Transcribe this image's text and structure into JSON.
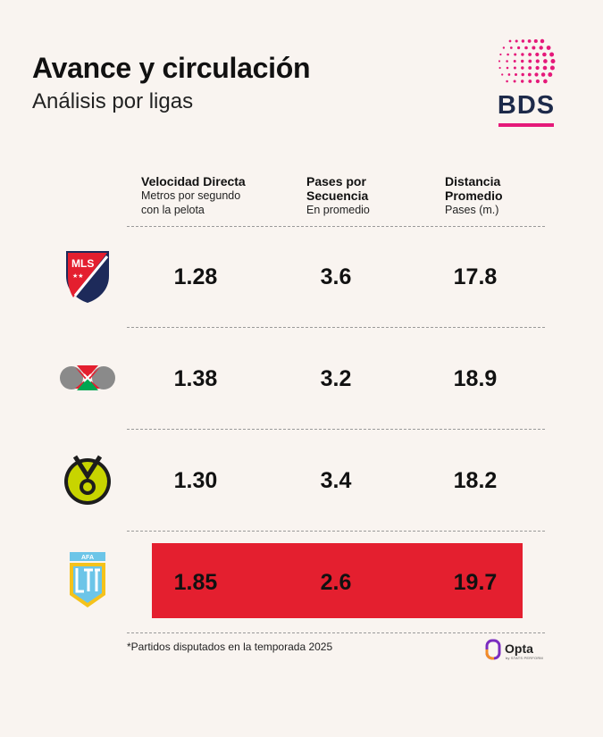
{
  "header": {
    "title": "Avance y circulación",
    "subtitle": "Análisis por ligas"
  },
  "brand": {
    "logo_text": "BDS",
    "color": "#e5197a",
    "text_color": "#1d2a4a"
  },
  "columns": [
    {
      "heading": "Velocidad Directa",
      "sub": [
        "Metros por segundo",
        "con la pelota"
      ]
    },
    {
      "heading": "Pases por Secuencia",
      "sub": [
        "En promedio"
      ]
    },
    {
      "heading": "Distancia Promedio",
      "sub": [
        "Pases (m.)"
      ]
    }
  ],
  "rows": [
    {
      "league_icon": "mls-logo-icon",
      "values": [
        "1.28",
        "3.6",
        "17.8"
      ],
      "highlight": false
    },
    {
      "league_icon": "liga-mx-logo-icon",
      "values": [
        "1.38",
        "3.2",
        "18.9"
      ],
      "highlight": false
    },
    {
      "league_icon": "brasileirao-logo-icon",
      "values": [
        "1.30",
        "3.4",
        "18.2"
      ],
      "highlight": false
    },
    {
      "league_icon": "lpf-argentina-logo-icon",
      "logo_text": "AFA",
      "values": [
        "1.85",
        "2.6",
        "19.7"
      ],
      "highlight": true
    }
  ],
  "highlight_color": "#e41f2f",
  "footnote": "*Partidos disputados en la temporada 2025",
  "credit": {
    "name": "Opta",
    "sub": "by STATS PERFORM"
  }
}
